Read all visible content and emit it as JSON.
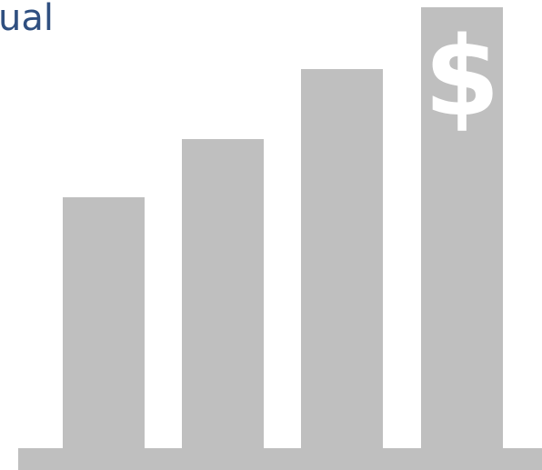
{
  "title_fragment": "ual",
  "dollar_symbol": "$",
  "growth_level": [
    0.57,
    0.7,
    0.86,
    1.0
  ],
  "colors": {
    "title": "#2f4f80",
    "bars": "#bfbfbf",
    "baseline": "#bfbfbf",
    "dollar": "#ffffff"
  },
  "icon": "growth-bar-chart-dollar-icon"
}
